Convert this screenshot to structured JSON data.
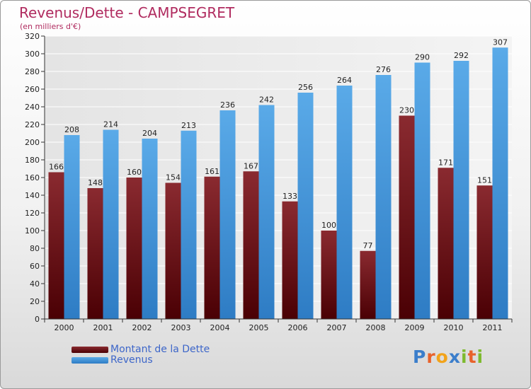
{
  "title": "Revenus/Dette - CAMPSEGRET",
  "subtitle": "(en milliers d'€)",
  "logo": {
    "text": "Proxiti",
    "letter_colors": [
      "#3b7ecb",
      "#e8622b",
      "#f2a31a",
      "#3b7ecb",
      "#7dba2e",
      "#e8622b",
      "#7dba2e"
    ]
  },
  "legend": [
    {
      "name": "Montant de la Dette",
      "color": "#6b0d13"
    },
    {
      "name": "Revenus",
      "color": "#4e9be0"
    }
  ],
  "chart_data": {
    "type": "bar",
    "title": "Revenus/Dette - CAMPSEGRET",
    "subtitle": "(en milliers d'€)",
    "xlabel": "",
    "ylabel": "",
    "ylim": [
      0,
      320
    ],
    "yticks": [
      0,
      20,
      40,
      60,
      80,
      100,
      120,
      140,
      160,
      180,
      200,
      220,
      240,
      260,
      280,
      300,
      320
    ],
    "grid": true,
    "legend_position": "bottom-left",
    "categories": [
      "2000",
      "2001",
      "2002",
      "2003",
      "2004",
      "2005",
      "2006",
      "2007",
      "2008",
      "2009",
      "2010",
      "2011"
    ],
    "series": [
      {
        "name": "Montant de la Dette",
        "color": "#6b0d13",
        "values": [
          166,
          148,
          160,
          154,
          161,
          167,
          133,
          100,
          77,
          230,
          171,
          151
        ]
      },
      {
        "name": "Revenus",
        "color": "#4e9be0",
        "values": [
          208,
          214,
          204,
          213,
          236,
          242,
          256,
          264,
          276,
          290,
          292,
          307
        ]
      }
    ]
  }
}
